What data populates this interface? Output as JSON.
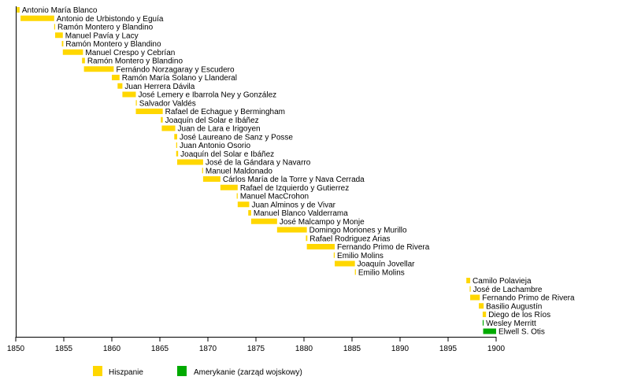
{
  "chart_data": {
    "type": "timeline",
    "title": "",
    "xlim": [
      1850,
      1900
    ],
    "x_ticks": [
      "1850",
      "1855",
      "1860",
      "1865",
      "1870",
      "1875",
      "1880",
      "1885",
      "1890",
      "1895",
      "1900"
    ],
    "legend": [
      {
        "label": "Hiszpanie",
        "color": "#ffd700"
      },
      {
        "label": "Amerykanie (zarząd wojskowy)",
        "color": "#00aa00"
      }
    ],
    "series": [
      {
        "name": "Antonio María Blanco",
        "start": 1850.1,
        "end": 1850.4,
        "group": 0
      },
      {
        "name": "Antonio de Urbistondo y Eguía",
        "start": 1850.5,
        "end": 1854.0,
        "group": 0
      },
      {
        "name": "Ramón Montero y Blandino",
        "start": 1854.0,
        "end": 1854.1,
        "group": 0
      },
      {
        "name": "Manuel Pavía y Lacy",
        "start": 1854.1,
        "end": 1854.9,
        "group": 0
      },
      {
        "name": "Ramón Montero y Blandino",
        "start": 1854.8,
        "end": 1854.95,
        "group": 0
      },
      {
        "name": "Manuel Crespo y Cebrían",
        "start": 1854.9,
        "end": 1857.0,
        "group": 0
      },
      {
        "name": "Ramón Montero y Blandino",
        "start": 1856.9,
        "end": 1857.2,
        "group": 0
      },
      {
        "name": "Fernándo Norzagaray y Escudero",
        "start": 1857.1,
        "end": 1860.2,
        "group": 0
      },
      {
        "name": "Ramón María Solano y Llanderal",
        "start": 1860.0,
        "end": 1860.8,
        "group": 0
      },
      {
        "name": "Juan Herrera Dávila",
        "start": 1860.6,
        "end": 1861.1,
        "group": 0
      },
      {
        "name": "José Lemery e Ibarrola Ney y González",
        "start": 1861.1,
        "end": 1862.5,
        "group": 0
      },
      {
        "name": "Salvador Valdés",
        "start": 1862.5,
        "end": 1862.6,
        "group": 0
      },
      {
        "name": "Rafael de Echague y Bermingham",
        "start": 1862.5,
        "end": 1865.3,
        "group": 0
      },
      {
        "name": "Joaquín del Solar e Ibáñez",
        "start": 1865.1,
        "end": 1865.3,
        "group": 0
      },
      {
        "name": "Juan de Lara e Irigoyen",
        "start": 1865.2,
        "end": 1866.6,
        "group": 0
      },
      {
        "name": "José Laureano de Sanz y Posse",
        "start": 1866.5,
        "end": 1866.8,
        "group": 0
      },
      {
        "name": "Juan Antonio Osorio",
        "start": 1866.7,
        "end": 1866.8,
        "group": 0
      },
      {
        "name": "Joaquín del Solar e Ibáñez",
        "start": 1866.7,
        "end": 1866.9,
        "group": 0
      },
      {
        "name": "José de la Gándara y Navarro",
        "start": 1866.8,
        "end": 1869.5,
        "group": 0
      },
      {
        "name": "Manuel Maldonado",
        "start": 1869.4,
        "end": 1869.5,
        "group": 0
      },
      {
        "name": "Cárlos María de la Torre y Nava Cerrada",
        "start": 1869.5,
        "end": 1871.3,
        "group": 0
      },
      {
        "name": "Rafael de Izquierdo y Gutierrez",
        "start": 1871.3,
        "end": 1873.1,
        "group": 0
      },
      {
        "name": "Manuel MacCrohon",
        "start": 1873.0,
        "end": 1873.1,
        "group": 0
      },
      {
        "name": "Juan Alminos y de Vivar",
        "start": 1873.1,
        "end": 1874.3,
        "group": 0
      },
      {
        "name": "Manuel Blanco Valderrama",
        "start": 1874.2,
        "end": 1874.5,
        "group": 0
      },
      {
        "name": "José Malcampo y Monje",
        "start": 1874.5,
        "end": 1877.2,
        "group": 0
      },
      {
        "name": "Domingo Moriones y Murillo",
        "start": 1877.2,
        "end": 1880.3,
        "group": 0
      },
      {
        "name": "Rafael Rodriguez Arias",
        "start": 1880.2,
        "end": 1880.35,
        "group": 0
      },
      {
        "name": "Fernando Primo de Rivera",
        "start": 1880.3,
        "end": 1883.2,
        "group": 0
      },
      {
        "name": "Emilio Molins",
        "start": 1883.1,
        "end": 1883.2,
        "group": 0
      },
      {
        "name": "Joaquín Jovellar",
        "start": 1883.2,
        "end": 1885.3,
        "group": 0
      },
      {
        "name": "Emilio Molins",
        "start": 1885.3,
        "end": 1885.4,
        "group": 0
      },
      {
        "name": "Camilo Polavieja",
        "start": 1896.9,
        "end": 1897.3,
        "group": 0
      },
      {
        "name": "José de Lachambre",
        "start": 1897.25,
        "end": 1897.35,
        "group": 0
      },
      {
        "name": "Fernando Primo de Rivera",
        "start": 1897.3,
        "end": 1898.3,
        "group": 0
      },
      {
        "name": "Basilio Augustín",
        "start": 1898.2,
        "end": 1898.7,
        "group": 0
      },
      {
        "name": "Diego de los Ríos",
        "start": 1898.6,
        "end": 1898.95,
        "group": 0
      },
      {
        "name": "Wesley Merritt",
        "start": 1898.6,
        "end": 1898.7,
        "group": 1
      },
      {
        "name": "Elwell S. Otis",
        "start": 1898.65,
        "end": 1900.0,
        "group": 1
      }
    ]
  }
}
